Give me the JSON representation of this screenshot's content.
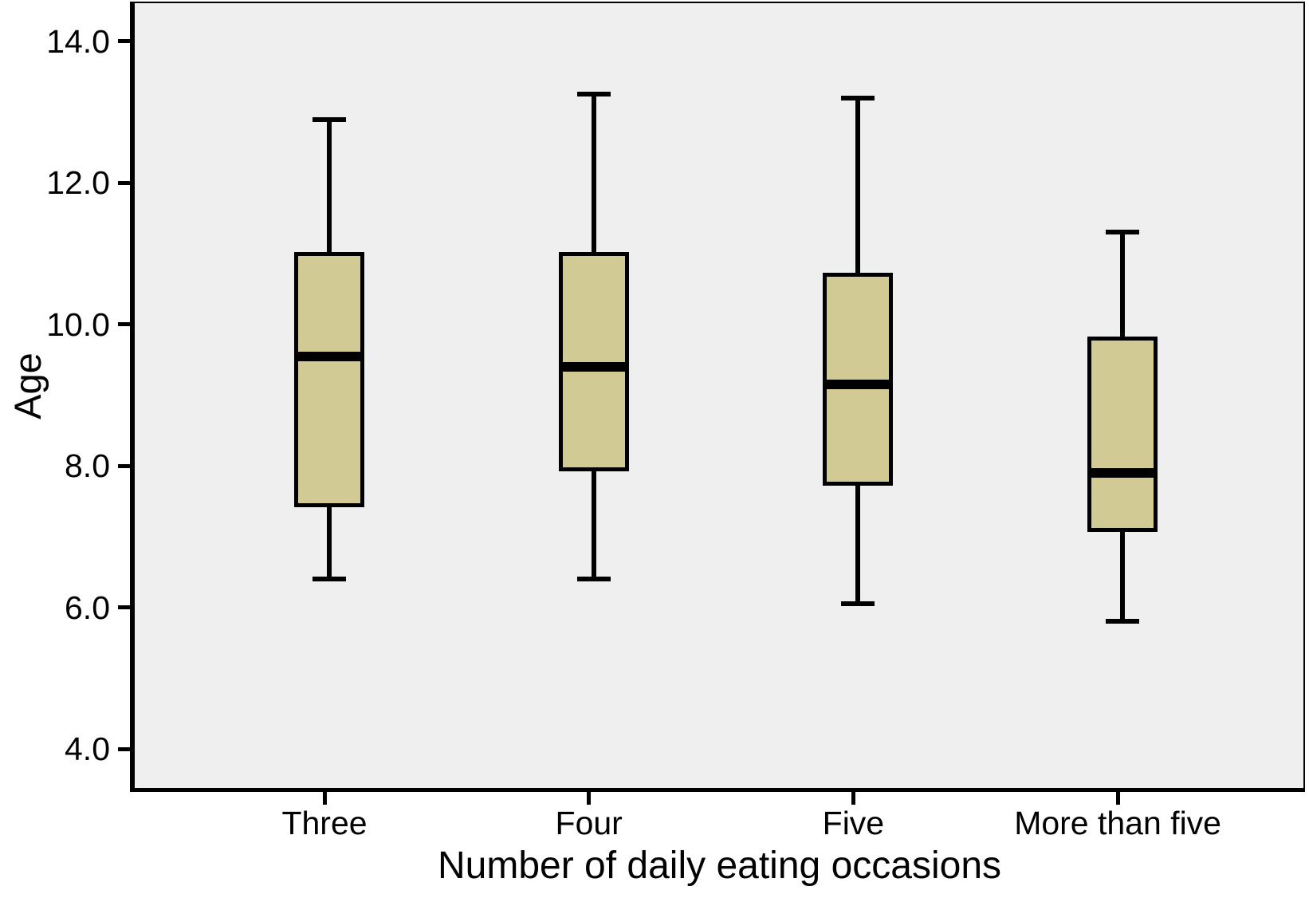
{
  "chart_data": {
    "type": "box",
    "title": "",
    "xlabel": "Number of daily eating occasions",
    "ylabel": "Age",
    "categories": [
      "Three",
      "Four",
      "Five",
      "More than five"
    ],
    "series": [
      {
        "name": "Three",
        "whisker_low": 6.4,
        "q1": 7.45,
        "median": 9.55,
        "q3": 11.0,
        "whisker_high": 12.9
      },
      {
        "name": "Four",
        "whisker_low": 6.4,
        "q1": 7.95,
        "median": 9.4,
        "q3": 11.0,
        "whisker_high": 13.25
      },
      {
        "name": "Five",
        "whisker_low": 6.05,
        "q1": 7.75,
        "median": 9.15,
        "q3": 10.7,
        "whisker_high": 13.2
      },
      {
        "name": "More than five",
        "whisker_low": 5.8,
        "q1": 7.1,
        "median": 7.9,
        "q3": 9.8,
        "whisker_high": 11.3
      }
    ],
    "yticks": {
      "values": [
        14,
        12,
        10,
        8,
        6,
        4
      ],
      "labels": [
        "14.0",
        "12.0",
        "10.0",
        "8.0",
        "6.0",
        "4.0"
      ]
    },
    "ylim": [
      3.45,
      14.54
    ],
    "grid": false,
    "legend": null,
    "colors": {
      "box_fill": "#d2ca94",
      "line": "#000000",
      "plot_background": "#efefef"
    }
  }
}
